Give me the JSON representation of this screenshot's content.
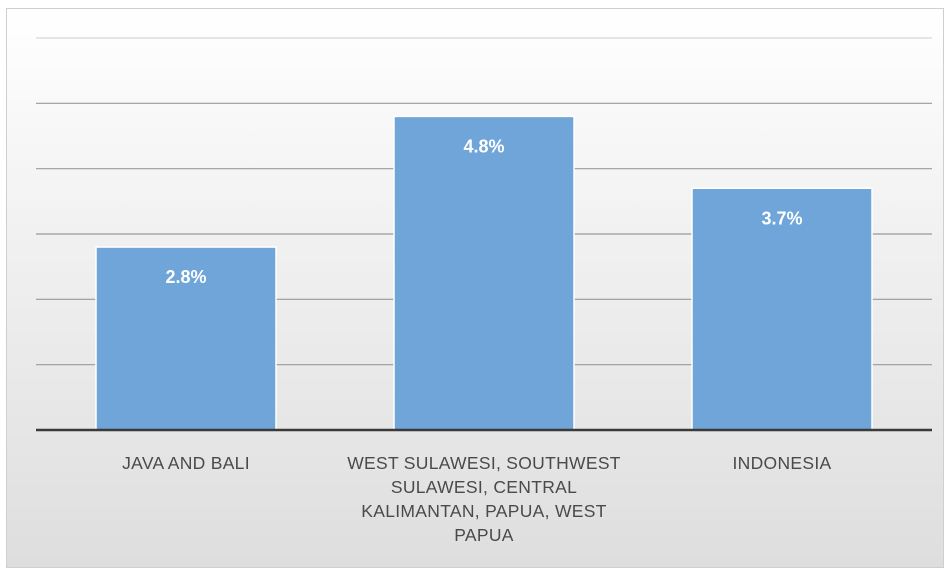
{
  "chart_data": {
    "type": "bar",
    "categories": [
      "JAVA AND BALI",
      "WEST SULAWESI, SOUTHWEST\nSULAWESI, CENTRAL\nKALIMANTAN, PAPUA, WEST\nPAPUA",
      "INDONESIA"
    ],
    "values": [
      2.8,
      4.8,
      3.7
    ],
    "data_labels": [
      "2.8%",
      "4.8%",
      "3.7%"
    ],
    "ylim": [
      0,
      6
    ],
    "grid": true,
    "colors": {
      "bar": "#6fa5d9",
      "bar_border": "#ffffff",
      "label": "#ffffff",
      "axis": "#3a3a3a",
      "grid": "#9a9a9a"
    }
  }
}
